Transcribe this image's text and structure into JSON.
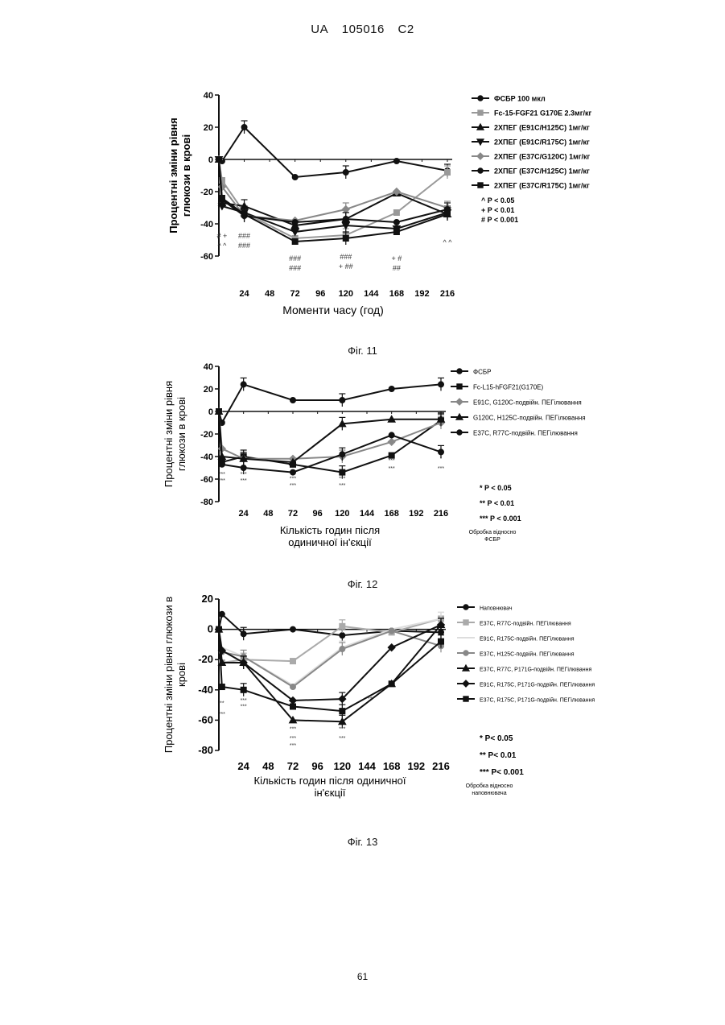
{
  "header": {
    "country": "UA",
    "number": "105016",
    "kind": "C2"
  },
  "page_number": "61",
  "figures": [
    {
      "caption": "Фіг. 11"
    },
    {
      "caption": "Фіг. 12"
    },
    {
      "caption": "Фіг. 13"
    }
  ],
  "chart_data": [
    {
      "type": "line",
      "ylabel": "Процентні зміни рівня глюкози в крові",
      "xlabel": "Моменти часу (год)",
      "ylim": [
        -60,
        40
      ],
      "yticks": [
        "40",
        "20",
        "0",
        "-20",
        "-40",
        "-60"
      ],
      "xticks": [
        "24",
        "48",
        "72",
        "96",
        "120",
        "144",
        "168",
        "192",
        "216"
      ],
      "series": [
        {
          "name": "ФСБР 100 мкл",
          "color": "#111111",
          "marker": "circle",
          "x": [
            0,
            3,
            24,
            72,
            120,
            168,
            216
          ],
          "y": [
            0,
            -1,
            20,
            -11,
            -8,
            -1,
            -7
          ]
        },
        {
          "name": "Fc-15-FGF21 G170E 2.3мг/кг",
          "color": "#999999",
          "marker": "square",
          "x": [
            0,
            3,
            24,
            72,
            120,
            168,
            216
          ],
          "y": [
            0,
            -13,
            -33,
            -49,
            -47,
            -33,
            -8
          ]
        },
        {
          "name": "2ХПЕГ (E91C/H125C) 1мг/кг",
          "color": "#111111",
          "marker": "triangle",
          "x": [
            0,
            3,
            24,
            72,
            120,
            168,
            216
          ],
          "y": [
            0,
            -27,
            -29,
            -41,
            -37,
            -21,
            -34
          ]
        },
        {
          "name": "2ХПЕГ (E91C/R175C) 1мг/кг",
          "color": "#111111",
          "marker": "triangle-down",
          "x": [
            0,
            3,
            24,
            72,
            120,
            168,
            216
          ],
          "y": [
            0,
            -29,
            -33,
            -45,
            -41,
            -43,
            -33
          ]
        },
        {
          "name": "2ХПЕГ (E37C/G120C) 1мг/кг",
          "color": "#888888",
          "marker": "diamond",
          "x": [
            0,
            3,
            24,
            72,
            120,
            168,
            216
          ],
          "y": [
            0,
            -17,
            -35,
            -38,
            -31,
            -20,
            -30
          ]
        },
        {
          "name": "2ХПЕГ (E37C/H125C) 1мг/кг",
          "color": "#111111",
          "marker": "circle",
          "x": [
            0,
            3,
            24,
            72,
            120,
            168,
            216
          ],
          "y": [
            0,
            -25,
            -35,
            -39,
            -37,
            -39,
            -31
          ]
        },
        {
          "name": "2ХПЕГ (E37C/R175C) 1мг/кг",
          "color": "#111111",
          "marker": "square",
          "x": [
            0,
            3,
            24,
            72,
            120,
            168,
            216
          ],
          "y": [
            0,
            -24,
            -34,
            -51,
            -49,
            -45,
            -34
          ]
        }
      ],
      "significance": [
        "^ P < 0.05",
        "+ P < 0.01",
        "# P < 0.001"
      ],
      "annotations": [
        {
          "x": 3,
          "y": -49,
          "text": "# +"
        },
        {
          "x": 3,
          "y": -55,
          "text": "^ ^"
        },
        {
          "x": 24,
          "y": -49,
          "text": "###"
        },
        {
          "x": 24,
          "y": -55,
          "text": "###"
        },
        {
          "x": 72,
          "y": -63,
          "text": "###"
        },
        {
          "x": 72,
          "y": -69,
          "text": "###"
        },
        {
          "x": 120,
          "y": -62,
          "text": "###"
        },
        {
          "x": 120,
          "y": -68,
          "text": "+ ##"
        },
        {
          "x": 168,
          "y": -63,
          "text": "+ #"
        },
        {
          "x": 168,
          "y": -69,
          "text": "##"
        },
        {
          "x": 216,
          "y": -53,
          "text": "^ ^"
        }
      ]
    },
    {
      "type": "line",
      "ylabel": "Процентні зміни рівня глюкози в крові",
      "xlabel": "Кількість годин після одиничної ін'єкції",
      "ylim": [
        -80,
        40
      ],
      "yticks": [
        "40",
        "20",
        "0",
        "-20",
        "-40",
        "-60",
        "-80"
      ],
      "xticks": [
        "24",
        "48",
        "72",
        "96",
        "120",
        "144",
        "168",
        "192",
        "216"
      ],
      "series": [
        {
          "name": "ФСБР",
          "color": "#111111",
          "marker": "circle",
          "x": [
            0,
            3,
            24,
            72,
            120,
            168,
            216
          ],
          "y": [
            0,
            -10,
            24,
            10,
            10,
            20,
            24
          ]
        },
        {
          "name": "Fc-L15-hFGF21(G170E)",
          "color": "#111111",
          "marker": "square",
          "x": [
            0,
            3,
            24,
            72,
            120,
            168,
            216
          ],
          "y": [
            0,
            -45,
            -40,
            -47,
            -54,
            -39,
            -8
          ]
        },
        {
          "name": "E91C, G120C-подвійн. ПЕГілювання",
          "color": "#888888",
          "marker": "diamond",
          "x": [
            0,
            3,
            24,
            72,
            120,
            168,
            216
          ],
          "y": [
            0,
            -33,
            -42,
            -42,
            -40,
            -27,
            -10
          ]
        },
        {
          "name": "G120C, H125C-подвійн. ПЕГілювання",
          "color": "#111111",
          "marker": "triangle",
          "x": [
            0,
            3,
            24,
            72,
            120,
            168,
            216
          ],
          "y": [
            0,
            -40,
            -42,
            -45,
            -11,
            -7,
            -7
          ]
        },
        {
          "name": "E37C, R77C-подвійн. ПЕГілювання",
          "color": "#111111",
          "marker": "circle",
          "x": [
            0,
            3,
            24,
            72,
            120,
            168,
            216
          ],
          "y": [
            0,
            -47,
            -50,
            -54,
            -38,
            -21,
            -36
          ]
        }
      ],
      "significance": [
        "* P < 0.05",
        "** P < 0.01",
        "*** P < 0.001"
      ],
      "footnote": "Обробка відносно ФСБР",
      "annotations": [
        {
          "x": 3,
          "y": -57,
          "text": "***"
        },
        {
          "x": 3,
          "y": -63,
          "text": "***"
        },
        {
          "x": 24,
          "y": -57,
          "text": "***"
        },
        {
          "x": 24,
          "y": -63,
          "text": "***"
        },
        {
          "x": 72,
          "y": -61,
          "text": "***"
        },
        {
          "x": 72,
          "y": -67,
          "text": "***"
        },
        {
          "x": 120,
          "y": -61,
          "text": "***"
        },
        {
          "x": 120,
          "y": -67,
          "text": "***"
        },
        {
          "x": 168,
          "y": -45,
          "text": "***"
        },
        {
          "x": 168,
          "y": -52,
          "text": "***"
        },
        {
          "x": 216,
          "y": -43,
          "text": "*"
        },
        {
          "x": 216,
          "y": -52,
          "text": "***"
        }
      ]
    },
    {
      "type": "line",
      "ylabel": "Процентні зміни рівня глюкози в крові",
      "xlabel": "Кількість годин після одиничної ін'єкції",
      "ylim": [
        -80,
        20
      ],
      "yticks": [
        "20",
        "0",
        "-20",
        "-40",
        "-60",
        "-80"
      ],
      "xticks": [
        "24",
        "48",
        "72",
        "96",
        "120",
        "144",
        "168",
        "192",
        "216"
      ],
      "series": [
        {
          "name": "Наповнювач",
          "color": "#111111",
          "marker": "circle",
          "x": [
            0,
            3,
            24,
            72,
            120,
            168,
            216
          ],
          "y": [
            0,
            10,
            -3,
            0,
            -4,
            -1,
            -2
          ]
        },
        {
          "name": "E37C, R77C-подвійн. ПЕГілювання",
          "color": "#aaaaaa",
          "marker": "square",
          "x": [
            0,
            3,
            24,
            72,
            120,
            168,
            216
          ],
          "y": [
            0,
            -22,
            -20,
            -21,
            2,
            -2,
            7
          ]
        },
        {
          "name": "E91C, R175C-подвійн. ПЕГілювання",
          "color": "#dddddd",
          "marker": "none",
          "x": [
            0,
            3,
            24,
            72,
            120,
            168,
            216
          ],
          "y": [
            0,
            -12,
            -18,
            -37,
            -12,
            0,
            7
          ]
        },
        {
          "name": "E37C, H125C-подвійн. ПЕГілювання",
          "color": "#888888",
          "marker": "circle",
          "x": [
            0,
            3,
            24,
            72,
            120,
            168,
            216
          ],
          "y": [
            0,
            -15,
            -18,
            -38,
            -13,
            -1,
            -11
          ]
        },
        {
          "name": "E37C, R77C, P171G-подвійн. ПЕГілювання",
          "color": "#111111",
          "marker": "triangle",
          "x": [
            0,
            3,
            24,
            72,
            120,
            168,
            216
          ],
          "y": [
            0,
            -22,
            -22,
            -60,
            -61,
            -36,
            3
          ]
        },
        {
          "name": "E91C, R175C, P171G-подвійн. ПЕГілювання",
          "color": "#111111",
          "marker": "diamond",
          "x": [
            0,
            3,
            24,
            72,
            120,
            168,
            216
          ],
          "y": [
            0,
            -14,
            -22,
            -47,
            -46,
            -12,
            3
          ]
        },
        {
          "name": "E37C, R175C, P171G-подвійн. ПЕГілювання",
          "color": "#111111",
          "marker": "square",
          "x": [
            0,
            3,
            24,
            72,
            120,
            168,
            216
          ],
          "y": [
            0,
            -38,
            -40,
            -51,
            -54,
            -36,
            -8
          ]
        }
      ],
      "significance": [
        "* P< 0.05",
        "** P< 0.01",
        "*** P< 0.001"
      ],
      "footnote": "Обробка відносно наповнювача",
      "annotations": [
        {
          "x": 3,
          "y": -50,
          "text": "**"
        },
        {
          "x": 3,
          "y": -57,
          "text": "***"
        },
        {
          "x": 24,
          "y": -48,
          "text": "***"
        },
        {
          "x": 24,
          "y": -52,
          "text": "***"
        },
        {
          "x": 72,
          "y": -67,
          "text": "***"
        },
        {
          "x": 72,
          "y": -73,
          "text": "***"
        },
        {
          "x": 72,
          "y": -78,
          "text": "***"
        },
        {
          "x": 120,
          "y": -67,
          "text": "***"
        },
        {
          "x": 120,
          "y": -73,
          "text": "***"
        },
        {
          "x": 148,
          "y": -47,
          "text": "***"
        }
      ]
    }
  ]
}
